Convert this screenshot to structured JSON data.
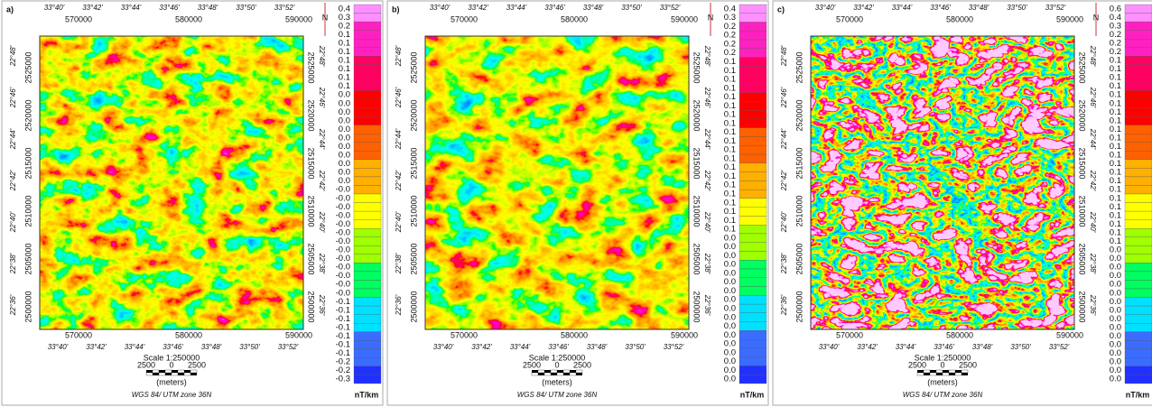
{
  "axes": {
    "lon": [
      "33°40'",
      "33°42'",
      "33°44'",
      "33°46'",
      "33°48'",
      "33°50'",
      "33°52'"
    ],
    "easting": [
      "570000",
      "580000",
      "590000"
    ],
    "northing": [
      "2525000",
      "2520000",
      "2515000",
      "2510000",
      "2505000",
      "2500000"
    ],
    "lat": [
      "22°48'",
      "22°46'",
      "22°44'",
      "22°42'",
      "22°40'",
      "22°38'",
      "22°36'"
    ]
  },
  "north": "N",
  "scale": {
    "title": "Scale 1:250000",
    "ticks": [
      "2500",
      "0",
      "2500"
    ],
    "unit": "(meters)"
  },
  "projection": "WGS 84/ UTM zone 36N",
  "unit": "nT/km",
  "panels": [
    {
      "label": "a)",
      "colorbar": [
        "0.4",
        "0.3",
        "0.2",
        "0.1",
        "0.1",
        "0.1",
        "0.1",
        "0.1",
        "0.1",
        "0.1",
        "0.0",
        "0.0",
        "0.0",
        "0.0",
        "0.0",
        "0.0",
        "0.0",
        "0.0",
        "0.0",
        "0.0",
        "0.0",
        "-0.0",
        "-0.0",
        "-0.0",
        "-0.0",
        "-0.0",
        "-0.0",
        "-0.0",
        "-0.0",
        "-0.0",
        "-0.0",
        "-0.0",
        "-0.0",
        "-0.0",
        "-0.1",
        "-0.1",
        "-0.1",
        "-0.1",
        "-0.1",
        "-0.1",
        "-0.1",
        "-0.2",
        "-0.2",
        "-0.3"
      ]
    },
    {
      "label": "b)",
      "colorbar": [
        "0.4",
        "0.3",
        "0.2",
        "0.2",
        "0.2",
        "0.2",
        "0.1",
        "0.1",
        "0.1",
        "0.1",
        "0.1",
        "0.1",
        "0.1",
        "0.1",
        "0.1",
        "0.1",
        "0.1",
        "0.1",
        "0.1",
        "0.1",
        "0.1",
        "0.1",
        "0.1",
        "0.1",
        "0.1",
        "0.1",
        "0.0",
        "0.0",
        "0.0",
        "0.0",
        "0.0",
        "0.0",
        "0.0",
        "0.0",
        "0.0",
        "0.0",
        "0.0",
        "0.0",
        "0.0",
        "0.0",
        "0.0",
        "0.0",
        "0.0"
      ]
    },
    {
      "label": "c)",
      "colorbar": [
        "0.6",
        "0.4",
        "0.3",
        "0.2",
        "0.2",
        "0.2",
        "0.1",
        "0.1",
        "0.1",
        "0.1",
        "0.1",
        "0.1",
        "0.1",
        "0.1",
        "0.1",
        "0.1",
        "0.1",
        "0.1",
        "0.1",
        "0.1",
        "0.1",
        "0.1",
        "0.1",
        "0.1",
        "0.1",
        "0.1",
        "0.1",
        "0.1",
        "0.0",
        "0.0",
        "0.0",
        "0.0",
        "0.0",
        "0.0",
        "0.0",
        "0.0",
        "0.0",
        "0.0",
        "0.0",
        "0.0",
        "0.0",
        "0.0",
        "0.0",
        "0.0"
      ]
    }
  ]
}
